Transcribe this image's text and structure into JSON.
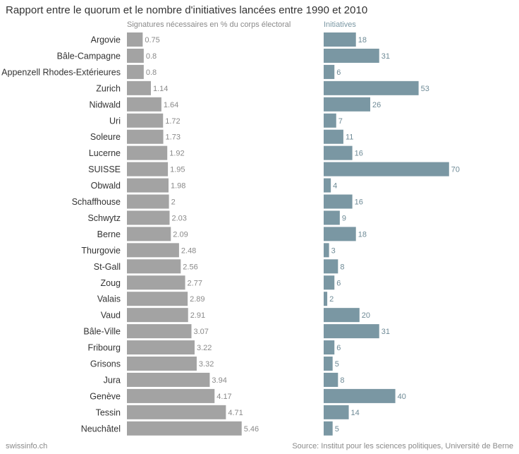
{
  "title": "Rapport entre le quorum et le nombre d'initiatives lancées entre 1990 et 2010",
  "footer": {
    "left": "swissinfo.ch",
    "right": "Source: Institut pour les sciences politiques, Université de Berne"
  },
  "colors": {
    "quorum_bar": "#a3a3a3",
    "initiatives_bar": "#7a97a3",
    "quorum_label": "#8a8a8a",
    "initiatives_label": "#6e8a96",
    "category_label": "#333333"
  },
  "chart_data": [
    {
      "type": "bar",
      "orientation": "horizontal",
      "title": "Signatures nécessaires en % du corps électoral",
      "categories": [
        "Argovie",
        "Bâle-Campagne",
        "Appenzell Rhodes-Extérieures",
        "Zurich",
        "Nidwald",
        "Uri",
        "Soleure",
        "Lucerne",
        "SUISSE",
        "Obwald",
        "Schaffhouse",
        "Schwytz",
        "Berne",
        "Thurgovie",
        "St-Gall",
        "Zoug",
        "Valais",
        "Vaud",
        "Bâle-Ville",
        "Fribourg",
        "Grisons",
        "Jura",
        "Genève",
        "Tessin",
        "Neuchâtel"
      ],
      "values": [
        0.75,
        0.8,
        0.8,
        1.14,
        1.64,
        1.72,
        1.73,
        1.92,
        1.95,
        1.98,
        2,
        2.03,
        2.09,
        2.48,
        2.56,
        2.77,
        2.89,
        2.91,
        3.07,
        3.22,
        3.32,
        3.94,
        4.17,
        4.71,
        5.46
      ],
      "value_labels": [
        "0.75",
        "0.8",
        "0.8",
        "1.14",
        "1.64",
        "1.72",
        "1.73",
        "1.92",
        "1.95",
        "1.98",
        "2",
        "2.03",
        "2.09",
        "2.48",
        "2.56",
        "2.77",
        "2.89",
        "2.91",
        "3.07",
        "3.22",
        "3.32",
        "3.94",
        "4.17",
        "4.71",
        "5.46"
      ],
      "xlim": [
        0,
        6
      ],
      "grid": false
    },
    {
      "type": "bar",
      "orientation": "horizontal",
      "title": "Initiatives",
      "categories": [
        "Argovie",
        "Bâle-Campagne",
        "Appenzell Rhodes-Extérieures",
        "Zurich",
        "Nidwald",
        "Uri",
        "Soleure",
        "Lucerne",
        "SUISSE",
        "Obwald",
        "Schaffhouse",
        "Schwytz",
        "Berne",
        "Thurgovie",
        "St-Gall",
        "Zoug",
        "Valais",
        "Vaud",
        "Bâle-Ville",
        "Fribourg",
        "Grisons",
        "Jura",
        "Genève",
        "Tessin",
        "Neuchâtel"
      ],
      "values": [
        18,
        31,
        6,
        53,
        26,
        7,
        11,
        16,
        70,
        4,
        16,
        9,
        18,
        3,
        8,
        6,
        2,
        20,
        31,
        6,
        5,
        8,
        40,
        14,
        5
      ],
      "value_labels": [
        "18",
        "31",
        "6",
        "53",
        "26",
        "7",
        "11",
        "16",
        "70",
        "4",
        "16",
        "9",
        "18",
        "3",
        "8",
        "6",
        "2",
        "20",
        "31",
        "6",
        "5",
        "8",
        "40",
        "14",
        "5"
      ],
      "xlim": [
        0,
        70
      ],
      "grid": false
    }
  ]
}
